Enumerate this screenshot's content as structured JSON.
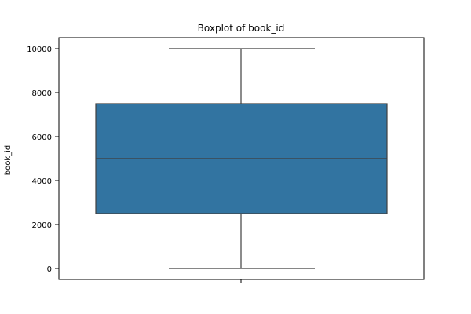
{
  "chart_data": {
    "type": "boxplot",
    "title": "Boxplot of book_id",
    "xlabel": "",
    "ylabel": "book_id",
    "ylim": [
      -500,
      10500
    ],
    "yticks": [
      0,
      2000,
      4000,
      6000,
      8000,
      10000
    ],
    "ytick_labels": [
      "0",
      "2000",
      "4000",
      "6000",
      "8000",
      "10000"
    ],
    "grid": false,
    "legend": "none",
    "box": {
      "whisker_low": 1,
      "q1": 2500,
      "median": 5000,
      "q3": 7500,
      "whisker_high": 10000
    },
    "colors": {
      "box_fill": "#3274a1",
      "line": "#3f3f3f",
      "frame": "#000000"
    }
  }
}
